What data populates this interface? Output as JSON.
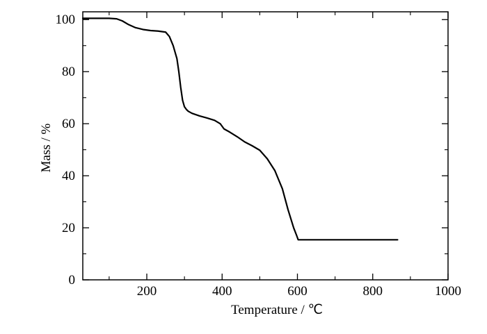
{
  "chart_data": {
    "type": "line",
    "title": "",
    "xlabel": "Temperature / ℃",
    "ylabel": "Mass / %",
    "xlim": [
      30,
      1000
    ],
    "ylim": [
      0,
      103
    ],
    "x_ticks": [
      200,
      400,
      600,
      800,
      1000
    ],
    "x_tick_labels": [
      "200",
      "400",
      "600",
      "800",
      "1000"
    ],
    "x_minor_ticks": [
      100,
      300,
      500,
      700,
      900
    ],
    "y_ticks": [
      0,
      20,
      40,
      60,
      80,
      100
    ],
    "y_tick_labels": [
      "0",
      "20",
      "40",
      "60",
      "80",
      "100"
    ],
    "y_minor_ticks": [
      10,
      30,
      50,
      70,
      90
    ],
    "grid": false,
    "legend": "none",
    "line_color": "#000000",
    "series": [
      {
        "x": [
          30,
          60,
          100,
          120,
          135,
          150,
          170,
          190,
          210,
          230,
          250,
          260,
          270,
          280,
          285,
          290,
          295,
          300,
          305,
          310,
          320,
          340,
          360,
          380,
          395,
          405,
          420,
          440,
          460,
          480,
          500,
          520,
          540,
          560,
          575,
          590,
          598,
          602,
          620,
          660,
          700,
          750,
          800,
          866
        ],
        "values": [
          100.5,
          100.5,
          100.5,
          100.3,
          99.5,
          98.2,
          96.9,
          96.2,
          95.8,
          95.6,
          95.2,
          93.5,
          90.0,
          85.0,
          80.0,
          74.0,
          69.0,
          66.5,
          65.5,
          64.8,
          64.0,
          63.0,
          62.2,
          61.3,
          60.0,
          58.0,
          56.8,
          55.0,
          53.0,
          51.5,
          49.8,
          46.5,
          42.0,
          35.0,
          27.0,
          20.0,
          17.0,
          15.4,
          15.4,
          15.4,
          15.4,
          15.4,
          15.4,
          15.4
        ]
      }
    ]
  }
}
